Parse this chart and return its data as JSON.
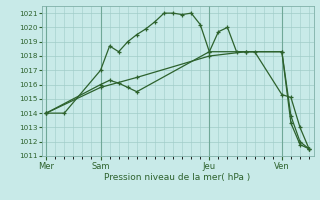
{
  "title": "Pression niveau de la mer( hPa )",
  "bg_color": "#c8eae8",
  "grid_color": "#a0ccc8",
  "line_color": "#2d622d",
  "ylim": [
    1011,
    1021.5
  ],
  "yticks": [
    1011,
    1012,
    1013,
    1014,
    1015,
    1016,
    1017,
    1018,
    1019,
    1020,
    1021
  ],
  "day_labels": [
    "Mer",
    "Sam",
    "Jeu",
    "Ven"
  ],
  "day_positions": [
    0,
    6,
    18,
    26
  ],
  "xlim": [
    -0.5,
    29.5
  ],
  "series1_x": [
    0,
    2,
    6,
    7,
    8,
    9,
    10,
    11,
    12,
    13,
    14,
    15,
    16,
    17,
    18,
    19,
    20,
    21,
    22,
    23,
    26,
    27,
    28,
    29
  ],
  "series1_y": [
    1014.0,
    1014.0,
    1017.0,
    1018.7,
    1018.3,
    1019.0,
    1019.5,
    1019.9,
    1020.4,
    1021.0,
    1021.0,
    1020.9,
    1021.0,
    1020.2,
    1018.3,
    1019.7,
    1020.0,
    1018.3,
    1018.3,
    1018.3,
    1015.3,
    1015.1,
    1013.0,
    1011.5
  ],
  "series2_x": [
    0,
    6,
    7,
    8,
    9,
    10,
    18,
    26,
    27,
    28,
    29
  ],
  "series2_y": [
    1014.0,
    1016.0,
    1016.3,
    1016.1,
    1015.8,
    1015.5,
    1018.3,
    1018.3,
    1013.3,
    1011.8,
    1011.5
  ],
  "series3_x": [
    0,
    6,
    10,
    18,
    22,
    26,
    27,
    28,
    29
  ],
  "series3_y": [
    1014.0,
    1015.8,
    1016.5,
    1018.0,
    1018.3,
    1018.3,
    1013.8,
    1012.0,
    1011.5
  ]
}
